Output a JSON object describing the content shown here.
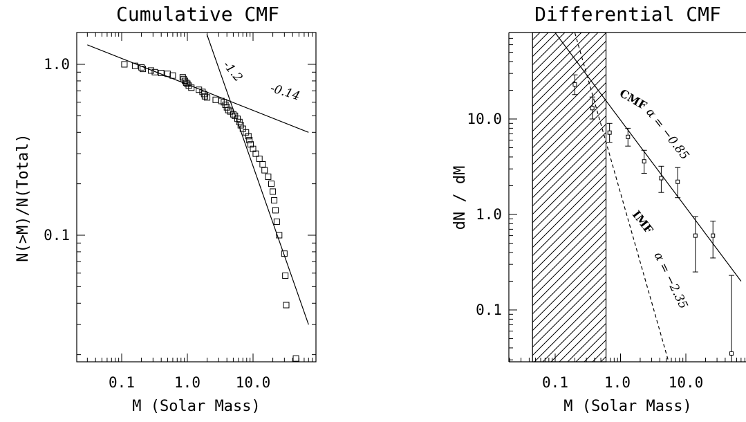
{
  "chart_data": [
    {
      "type": "scatter",
      "title": "Cumulative CMF",
      "xlabel": "M (Solar Mass)",
      "ylabel": "N(>M)/N(Total)",
      "xscale": "log",
      "yscale": "log",
      "xlim": [
        0.03,
        70
      ],
      "ylim": [
        0.018,
        1.5
      ],
      "x_ticks": [
        "0.1",
        "1.0",
        "10.0"
      ],
      "y_ticks": [
        "1.0",
        "0.1"
      ],
      "series": [
        {
          "marker": "open-square",
          "points": [
            [
              0.11,
              1.0
            ],
            [
              0.16,
              0.98
            ],
            [
              0.2,
              0.96
            ],
            [
              0.21,
              0.94
            ],
            [
              0.28,
              0.92
            ],
            [
              0.32,
              0.9
            ],
            [
              0.4,
              0.89
            ],
            [
              0.5,
              0.88
            ],
            [
              0.6,
              0.86
            ],
            [
              0.85,
              0.84
            ],
            [
              0.88,
              0.82
            ],
            [
              0.92,
              0.8
            ],
            [
              0.96,
              0.78
            ],
            [
              1.0,
              0.77
            ],
            [
              1.05,
              0.75
            ],
            [
              1.15,
              0.73
            ],
            [
              1.5,
              0.71
            ],
            [
              1.7,
              0.69
            ],
            [
              1.8,
              0.67
            ],
            [
              1.85,
              0.65
            ],
            [
              2.0,
              0.64
            ],
            [
              2.7,
              0.62
            ],
            [
              3.3,
              0.61
            ],
            [
              3.6,
              0.6
            ],
            [
              3.8,
              0.58
            ],
            [
              4.0,
              0.56
            ],
            [
              4.2,
              0.54
            ],
            [
              4.5,
              0.53
            ],
            [
              5.0,
              0.51
            ],
            [
              5.3,
              0.5
            ],
            [
              5.8,
              0.48
            ],
            [
              6.2,
              0.46
            ],
            [
              6.5,
              0.44
            ],
            [
              7.0,
              0.42
            ],
            [
              7.8,
              0.4
            ],
            [
              8.5,
              0.38
            ],
            [
              8.8,
              0.36
            ],
            [
              9.2,
              0.34
            ],
            [
              10.0,
              0.32
            ],
            [
              11.0,
              0.3
            ],
            [
              12.5,
              0.28
            ],
            [
              14.0,
              0.26
            ],
            [
              15.0,
              0.24
            ],
            [
              17.0,
              0.22
            ],
            [
              19.0,
              0.2
            ],
            [
              20.0,
              0.18
            ],
            [
              21.0,
              0.16
            ],
            [
              22.0,
              0.14
            ],
            [
              23.0,
              0.12
            ],
            [
              25.0,
              0.1
            ],
            [
              30.0,
              0.078
            ],
            [
              31.0,
              0.058
            ],
            [
              32.0,
              0.039
            ],
            [
              45.0,
              0.019
            ]
          ]
        }
      ],
      "lines": [
        {
          "style": "solid",
          "label": "-0.14",
          "points": [
            [
              0.03,
              1.3
            ],
            [
              70,
              0.4
            ]
          ]
        },
        {
          "style": "solid",
          "label": "-1.2",
          "points": [
            [
              1.98,
              1.5
            ],
            [
              70,
              0.03
            ]
          ]
        }
      ]
    },
    {
      "type": "scatter",
      "title": "Differential CMF",
      "xlabel": "M  (Solar Mass)",
      "ylabel": "dN / dM",
      "xscale": "log",
      "yscale": "log",
      "xlim": [
        0.03,
        70
      ],
      "ylim": [
        0.028,
        80
      ],
      "x_ticks": [
        "0.1",
        "1.0",
        "10.0"
      ],
      "y_ticks": [
        "10.0",
        "1.0",
        "0.1"
      ],
      "shaded_region": {
        "x": [
          0.045,
          0.6
        ],
        "pattern": "diagonal-hatch"
      },
      "series": [
        {
          "marker": "small-square-with-errorbars",
          "points": [
            {
              "x": 0.2,
              "y": 23,
              "ylo": 18,
              "yhi": 29
            },
            {
              "x": 0.37,
              "y": 13,
              "ylo": 10,
              "yhi": 17
            },
            {
              "x": 0.68,
              "y": 7.2,
              "ylo": 5.7,
              "yhi": 9.0
            },
            {
              "x": 1.3,
              "y": 6.5,
              "ylo": 5.2,
              "yhi": 8.0
            },
            {
              "x": 2.3,
              "y": 3.6,
              "ylo": 2.7,
              "yhi": 4.7
            },
            {
              "x": 4.2,
              "y": 2.4,
              "ylo": 1.7,
              "yhi": 3.2
            },
            {
              "x": 7.5,
              "y": 2.2,
              "ylo": 1.5,
              "yhi": 3.1
            },
            {
              "x": 14,
              "y": 0.6,
              "ylo": 0.25,
              "yhi": 0.95
            },
            {
              "x": 26,
              "y": 0.6,
              "ylo": 0.35,
              "yhi": 0.85
            },
            {
              "x": 50,
              "y": 0.035,
              "ylo": 0.02,
              "yhi": 0.23
            }
          ]
        }
      ],
      "lines": [
        {
          "style": "solid",
          "label_1": "CMF",
          "label_2": "α  =  −0.85",
          "points": [
            [
              0.1,
              80
            ],
            [
              70,
              0.2
            ]
          ]
        },
        {
          "style": "dashed",
          "label_1": "IMF",
          "label_2": "α  =  −2.35",
          "points": [
            [
              0.2,
              80
            ],
            [
              5.5,
              0.028
            ]
          ]
        }
      ]
    }
  ]
}
